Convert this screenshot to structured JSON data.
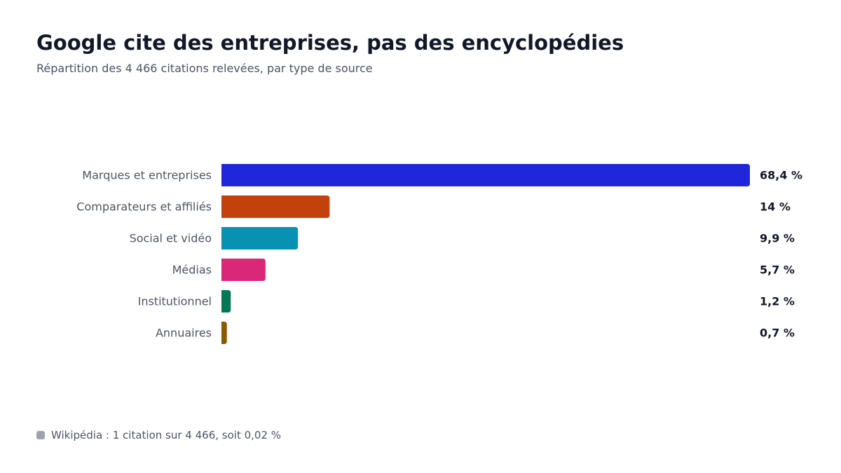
{
  "title": "Google cite des entreprises, pas des encyclopédies",
  "subtitle": "Répartition des 4 466 citations relevées, par type de source",
  "footnote": {
    "text": "Wikipédia : 1 citation sur 4 466, soit 0,02 %",
    "swatch_color": "#9ca3af"
  },
  "chart_data": {
    "type": "bar",
    "orientation": "horizontal",
    "title": "Google cite des entreprises, pas des encyclopédies",
    "subtitle": "Répartition des 4 466 citations relevées, par type de source",
    "categories": [
      "Marques et entreprises",
      "Comparateurs et affiliés",
      "Social et vidéo",
      "Médias",
      "Institutionnel",
      "Annuaires"
    ],
    "values": [
      68.4,
      14,
      9.9,
      5.7,
      1.2,
      0.7
    ],
    "value_labels": [
      "68,4 %",
      "14 %",
      "9,9 %",
      "5,7 %",
      "1,2 %",
      "0,7 %"
    ],
    "colors": [
      "#2026d9",
      "#c2410c",
      "#0891b2",
      "#db2777",
      "#047857",
      "#8a5a00"
    ],
    "xlim": [
      0,
      68.4
    ],
    "grid": false,
    "legend": "none"
  }
}
